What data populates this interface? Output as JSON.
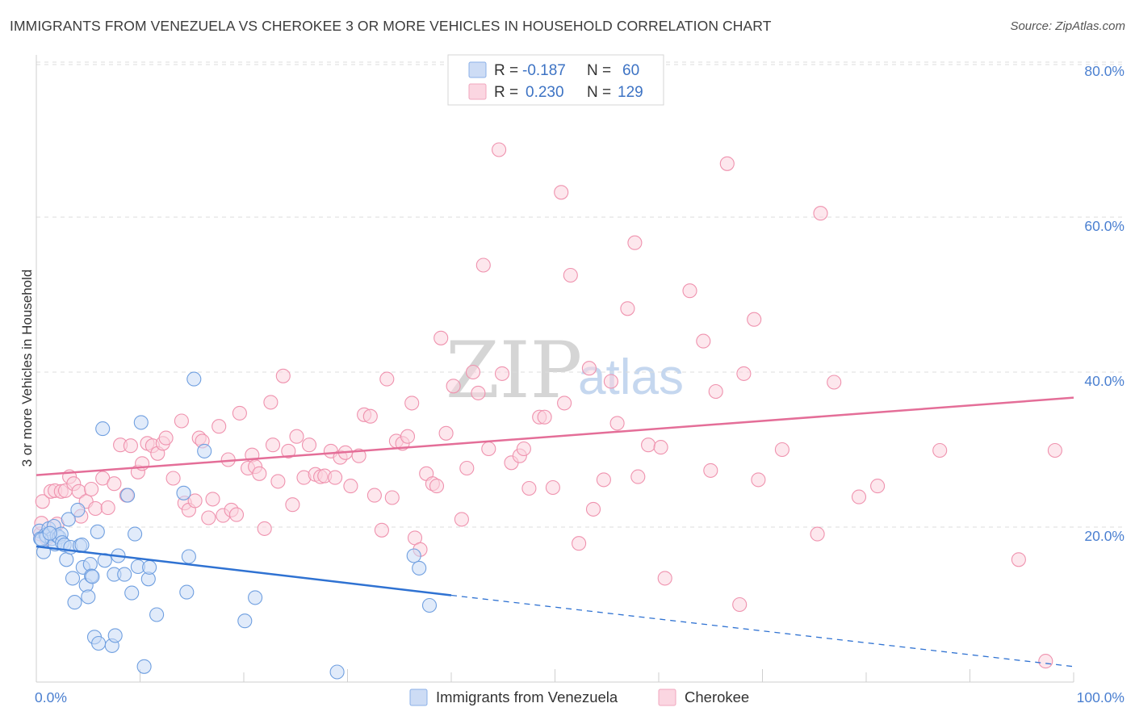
{
  "title": "IMMIGRANTS FROM VENEZUELA VS CHEROKEE 3 OR MORE VEHICLES IN HOUSEHOLD CORRELATION CHART",
  "source": "Source: ZipAtlas.com",
  "watermark": {
    "zip": "ZIP",
    "atlas": "atlas"
  },
  "legend": {
    "r_label": "R =",
    "n_label": "N =",
    "rows": [
      {
        "r": "-0.187",
        "n": "60",
        "color": "#a9c6ee"
      },
      {
        "r": "0.230",
        "n": "129",
        "color": "#f6bfd0"
      }
    ]
  },
  "bottom_legend": [
    "Immigrants from Venezuela",
    "Cherokee"
  ],
  "chart_data": {
    "type": "scatter",
    "xlabel": "",
    "ylabel": "3 or more Vehicles in Household",
    "xlim": [
      0,
      100
    ],
    "ylim": [
      0,
      80
    ],
    "x_tick_labels": [
      "0.0%",
      "100.0%"
    ],
    "y_ticks": [
      20,
      40,
      60,
      80
    ],
    "y_tick_labels": [
      "20.0%",
      "40.0%",
      "60.0%",
      "80.0%"
    ],
    "grid": true,
    "colors": {
      "venezuela": "#6f9fe0",
      "venezuela_line": "#2f72d2",
      "cherokee": "#ef92ae",
      "cherokee_line": "#e46e98"
    },
    "series": [
      {
        "name": "Immigrants from Venezuela",
        "trend": {
          "x": [
            0,
            40
          ],
          "y": [
            17.5,
            11.2
          ],
          "dashed_to": [
            100,
            2.0
          ]
        },
        "points": [
          [
            0.3,
            19.5
          ],
          [
            0.4,
            18.5
          ],
          [
            0.7,
            16.8
          ],
          [
            0.9,
            19.0
          ],
          [
            1.0,
            18.8
          ],
          [
            1.2,
            19.8
          ],
          [
            1.5,
            18.5
          ],
          [
            1.7,
            20.1
          ],
          [
            1.8,
            17.8
          ],
          [
            2.0,
            18.9
          ],
          [
            2.2,
            18.7
          ],
          [
            2.4,
            19.1
          ],
          [
            2.5,
            18.0
          ],
          [
            2.7,
            17.7
          ],
          [
            2.9,
            15.8
          ],
          [
            3.1,
            21.0
          ],
          [
            3.3,
            17.4
          ],
          [
            3.5,
            13.4
          ],
          [
            3.7,
            10.3
          ],
          [
            4.0,
            22.2
          ],
          [
            4.2,
            17.6
          ],
          [
            4.4,
            17.7
          ],
          [
            4.5,
            14.8
          ],
          [
            4.8,
            12.5
          ],
          [
            5.0,
            11.0
          ],
          [
            5.2,
            15.2
          ],
          [
            5.3,
            13.7
          ],
          [
            5.4,
            13.6
          ],
          [
            5.6,
            5.8
          ],
          [
            5.9,
            19.4
          ],
          [
            6.0,
            5.0
          ],
          [
            6.4,
            32.7
          ],
          [
            6.6,
            15.7
          ],
          [
            7.3,
            4.7
          ],
          [
            7.5,
            13.9
          ],
          [
            7.6,
            6.0
          ],
          [
            7.9,
            16.3
          ],
          [
            8.5,
            13.9
          ],
          [
            8.8,
            24.1
          ],
          [
            9.2,
            11.5
          ],
          [
            9.5,
            19.1
          ],
          [
            9.8,
            14.9
          ],
          [
            10.1,
            33.5
          ],
          [
            10.4,
            2.0
          ],
          [
            10.8,
            13.3
          ],
          [
            10.9,
            14.8
          ],
          [
            11.6,
            8.7
          ],
          [
            14.2,
            24.4
          ],
          [
            14.5,
            11.6
          ],
          [
            14.7,
            16.2
          ],
          [
            15.2,
            39.1
          ],
          [
            16.2,
            29.8
          ],
          [
            20.1,
            7.9
          ],
          [
            21.1,
            10.9
          ],
          [
            29.0,
            1.3
          ],
          [
            36.4,
            16.3
          ],
          [
            36.9,
            14.7
          ],
          [
            37.9,
            9.9
          ],
          [
            0.5,
            18.4
          ],
          [
            1.3,
            19.2
          ]
        ]
      },
      {
        "name": "Cherokee",
        "trend": {
          "x": [
            0,
            100
          ],
          "y": [
            26.7,
            36.7
          ]
        },
        "points": [
          [
            0.4,
            19.1
          ],
          [
            0.5,
            20.5
          ],
          [
            0.6,
            23.3
          ],
          [
            1.0,
            18.5
          ],
          [
            1.4,
            24.6
          ],
          [
            1.8,
            24.7
          ],
          [
            2.0,
            20.4
          ],
          [
            2.4,
            24.6
          ],
          [
            2.8,
            24.7
          ],
          [
            3.2,
            26.5
          ],
          [
            3.6,
            25.6
          ],
          [
            4.1,
            24.6
          ],
          [
            4.3,
            21.4
          ],
          [
            4.8,
            23.3
          ],
          [
            5.3,
            24.9
          ],
          [
            5.7,
            22.4
          ],
          [
            6.4,
            26.3
          ],
          [
            6.9,
            22.5
          ],
          [
            7.5,
            25.6
          ],
          [
            8.1,
            30.6
          ],
          [
            8.7,
            24.1
          ],
          [
            9.1,
            30.5
          ],
          [
            9.8,
            27.1
          ],
          [
            10.2,
            28.2
          ],
          [
            10.7,
            30.8
          ],
          [
            11.2,
            30.5
          ],
          [
            11.7,
            29.5
          ],
          [
            12.2,
            30.8
          ],
          [
            12.5,
            31.5
          ],
          [
            13.2,
            26.3
          ],
          [
            14.0,
            33.7
          ],
          [
            14.3,
            23.1
          ],
          [
            14.7,
            22.2
          ],
          [
            15.3,
            23.4
          ],
          [
            15.7,
            31.5
          ],
          [
            16.0,
            31.1
          ],
          [
            16.6,
            21.2
          ],
          [
            17.0,
            23.6
          ],
          [
            17.6,
            33.0
          ],
          [
            18.0,
            21.5
          ],
          [
            18.5,
            28.7
          ],
          [
            18.8,
            22.2
          ],
          [
            19.3,
            21.6
          ],
          [
            19.6,
            34.7
          ],
          [
            20.4,
            27.6
          ],
          [
            20.8,
            29.3
          ],
          [
            21.1,
            27.8
          ],
          [
            21.5,
            26.9
          ],
          [
            22.0,
            19.8
          ],
          [
            22.6,
            36.1
          ],
          [
            22.8,
            30.6
          ],
          [
            23.3,
            25.9
          ],
          [
            23.8,
            39.5
          ],
          [
            24.3,
            29.8
          ],
          [
            24.7,
            22.9
          ],
          [
            25.1,
            31.7
          ],
          [
            25.8,
            26.4
          ],
          [
            26.3,
            30.6
          ],
          [
            26.9,
            26.8
          ],
          [
            27.4,
            26.5
          ],
          [
            27.8,
            26.6
          ],
          [
            28.4,
            29.8
          ],
          [
            28.8,
            26.4
          ],
          [
            29.3,
            29.0
          ],
          [
            29.8,
            29.6
          ],
          [
            30.3,
            25.3
          ],
          [
            31.1,
            29.2
          ],
          [
            31.6,
            34.5
          ],
          [
            32.2,
            34.3
          ],
          [
            32.6,
            24.1
          ],
          [
            33.3,
            19.6
          ],
          [
            33.8,
            39.1
          ],
          [
            34.3,
            23.8
          ],
          [
            34.7,
            31.1
          ],
          [
            35.3,
            30.8
          ],
          [
            35.8,
            31.7
          ],
          [
            36.2,
            36.0
          ],
          [
            36.5,
            18.6
          ],
          [
            37.0,
            17.1
          ],
          [
            37.6,
            26.9
          ],
          [
            38.2,
            25.6
          ],
          [
            38.6,
            25.3
          ],
          [
            39.0,
            44.4
          ],
          [
            39.5,
            32.1
          ],
          [
            40.2,
            38.2
          ],
          [
            41.0,
            21.0
          ],
          [
            41.5,
            27.6
          ],
          [
            42.1,
            40.0
          ],
          [
            42.6,
            37.3
          ],
          [
            43.1,
            53.8
          ],
          [
            43.6,
            30.1
          ],
          [
            44.6,
            68.7
          ],
          [
            44.9,
            39.8
          ],
          [
            45.8,
            28.3
          ],
          [
            46.6,
            29.2
          ],
          [
            47.0,
            30.1
          ],
          [
            47.5,
            25.0
          ],
          [
            48.5,
            34.2
          ],
          [
            49.0,
            34.2
          ],
          [
            49.8,
            25.1
          ],
          [
            50.6,
            63.2
          ],
          [
            50.9,
            36.0
          ],
          [
            51.5,
            52.5
          ],
          [
            52.3,
            17.9
          ],
          [
            53.3,
            40.5
          ],
          [
            53.7,
            22.3
          ],
          [
            54.7,
            26.1
          ],
          [
            55.4,
            38.8
          ],
          [
            56.0,
            33.4
          ],
          [
            57.0,
            48.2
          ],
          [
            57.7,
            56.7
          ],
          [
            58.0,
            26.5
          ],
          [
            59.0,
            30.6
          ],
          [
            60.2,
            30.3
          ],
          [
            60.6,
            13.4
          ],
          [
            63.0,
            50.5
          ],
          [
            64.3,
            44.0
          ],
          [
            65.0,
            27.3
          ],
          [
            65.5,
            37.5
          ],
          [
            66.6,
            66.9
          ],
          [
            67.8,
            10.0
          ],
          [
            68.2,
            39.8
          ],
          [
            69.2,
            46.8
          ],
          [
            69.6,
            26.1
          ],
          [
            71.9,
            30.0
          ],
          [
            75.3,
            19.1
          ],
          [
            75.6,
            60.5
          ],
          [
            76.9,
            38.7
          ],
          [
            79.3,
            23.9
          ],
          [
            81.1,
            25.3
          ],
          [
            87.1,
            29.9
          ],
          [
            94.7,
            15.8
          ],
          [
            97.3,
            2.7
          ],
          [
            98.2,
            29.9
          ]
        ]
      }
    ]
  }
}
